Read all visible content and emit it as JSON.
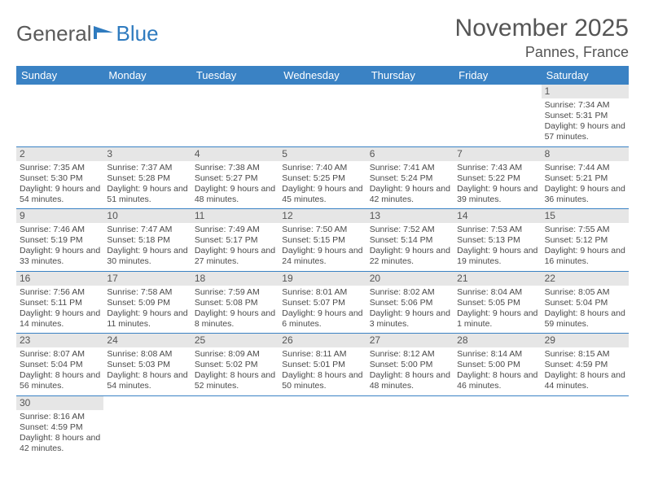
{
  "logo": {
    "text1": "General",
    "text2": "Blue"
  },
  "header": {
    "month": "November 2025",
    "location": "Pannes, France"
  },
  "colors": {
    "header_bg": "#3a82c4",
    "header_text": "#ffffff",
    "date_bg": "#e6e6e6",
    "body_text": "#4a4a4a",
    "row_border": "#3a82c4"
  },
  "fonts": {
    "title_size": 30,
    "location_size": 18,
    "dow_size": 13,
    "date_size": 12,
    "body_size": 10.5
  },
  "dow": [
    "Sunday",
    "Monday",
    "Tuesday",
    "Wednesday",
    "Thursday",
    "Friday",
    "Saturday"
  ],
  "weeks": [
    [
      null,
      null,
      null,
      null,
      null,
      null,
      {
        "d": "1",
        "sr": "Sunrise: 7:34 AM",
        "ss": "Sunset: 5:31 PM",
        "dl": "Daylight: 9 hours and 57 minutes."
      }
    ],
    [
      {
        "d": "2",
        "sr": "Sunrise: 7:35 AM",
        "ss": "Sunset: 5:30 PM",
        "dl": "Daylight: 9 hours and 54 minutes."
      },
      {
        "d": "3",
        "sr": "Sunrise: 7:37 AM",
        "ss": "Sunset: 5:28 PM",
        "dl": "Daylight: 9 hours and 51 minutes."
      },
      {
        "d": "4",
        "sr": "Sunrise: 7:38 AM",
        "ss": "Sunset: 5:27 PM",
        "dl": "Daylight: 9 hours and 48 minutes."
      },
      {
        "d": "5",
        "sr": "Sunrise: 7:40 AM",
        "ss": "Sunset: 5:25 PM",
        "dl": "Daylight: 9 hours and 45 minutes."
      },
      {
        "d": "6",
        "sr": "Sunrise: 7:41 AM",
        "ss": "Sunset: 5:24 PM",
        "dl": "Daylight: 9 hours and 42 minutes."
      },
      {
        "d": "7",
        "sr": "Sunrise: 7:43 AM",
        "ss": "Sunset: 5:22 PM",
        "dl": "Daylight: 9 hours and 39 minutes."
      },
      {
        "d": "8",
        "sr": "Sunrise: 7:44 AM",
        "ss": "Sunset: 5:21 PM",
        "dl": "Daylight: 9 hours and 36 minutes."
      }
    ],
    [
      {
        "d": "9",
        "sr": "Sunrise: 7:46 AM",
        "ss": "Sunset: 5:19 PM",
        "dl": "Daylight: 9 hours and 33 minutes."
      },
      {
        "d": "10",
        "sr": "Sunrise: 7:47 AM",
        "ss": "Sunset: 5:18 PM",
        "dl": "Daylight: 9 hours and 30 minutes."
      },
      {
        "d": "11",
        "sr": "Sunrise: 7:49 AM",
        "ss": "Sunset: 5:17 PM",
        "dl": "Daylight: 9 hours and 27 minutes."
      },
      {
        "d": "12",
        "sr": "Sunrise: 7:50 AM",
        "ss": "Sunset: 5:15 PM",
        "dl": "Daylight: 9 hours and 24 minutes."
      },
      {
        "d": "13",
        "sr": "Sunrise: 7:52 AM",
        "ss": "Sunset: 5:14 PM",
        "dl": "Daylight: 9 hours and 22 minutes."
      },
      {
        "d": "14",
        "sr": "Sunrise: 7:53 AM",
        "ss": "Sunset: 5:13 PM",
        "dl": "Daylight: 9 hours and 19 minutes."
      },
      {
        "d": "15",
        "sr": "Sunrise: 7:55 AM",
        "ss": "Sunset: 5:12 PM",
        "dl": "Daylight: 9 hours and 16 minutes."
      }
    ],
    [
      {
        "d": "16",
        "sr": "Sunrise: 7:56 AM",
        "ss": "Sunset: 5:11 PM",
        "dl": "Daylight: 9 hours and 14 minutes."
      },
      {
        "d": "17",
        "sr": "Sunrise: 7:58 AM",
        "ss": "Sunset: 5:09 PM",
        "dl": "Daylight: 9 hours and 11 minutes."
      },
      {
        "d": "18",
        "sr": "Sunrise: 7:59 AM",
        "ss": "Sunset: 5:08 PM",
        "dl": "Daylight: 9 hours and 8 minutes."
      },
      {
        "d": "19",
        "sr": "Sunrise: 8:01 AM",
        "ss": "Sunset: 5:07 PM",
        "dl": "Daylight: 9 hours and 6 minutes."
      },
      {
        "d": "20",
        "sr": "Sunrise: 8:02 AM",
        "ss": "Sunset: 5:06 PM",
        "dl": "Daylight: 9 hours and 3 minutes."
      },
      {
        "d": "21",
        "sr": "Sunrise: 8:04 AM",
        "ss": "Sunset: 5:05 PM",
        "dl": "Daylight: 9 hours and 1 minute."
      },
      {
        "d": "22",
        "sr": "Sunrise: 8:05 AM",
        "ss": "Sunset: 5:04 PM",
        "dl": "Daylight: 8 hours and 59 minutes."
      }
    ],
    [
      {
        "d": "23",
        "sr": "Sunrise: 8:07 AM",
        "ss": "Sunset: 5:04 PM",
        "dl": "Daylight: 8 hours and 56 minutes."
      },
      {
        "d": "24",
        "sr": "Sunrise: 8:08 AM",
        "ss": "Sunset: 5:03 PM",
        "dl": "Daylight: 8 hours and 54 minutes."
      },
      {
        "d": "25",
        "sr": "Sunrise: 8:09 AM",
        "ss": "Sunset: 5:02 PM",
        "dl": "Daylight: 8 hours and 52 minutes."
      },
      {
        "d": "26",
        "sr": "Sunrise: 8:11 AM",
        "ss": "Sunset: 5:01 PM",
        "dl": "Daylight: 8 hours and 50 minutes."
      },
      {
        "d": "27",
        "sr": "Sunrise: 8:12 AM",
        "ss": "Sunset: 5:00 PM",
        "dl": "Daylight: 8 hours and 48 minutes."
      },
      {
        "d": "28",
        "sr": "Sunrise: 8:14 AM",
        "ss": "Sunset: 5:00 PM",
        "dl": "Daylight: 8 hours and 46 minutes."
      },
      {
        "d": "29",
        "sr": "Sunrise: 8:15 AM",
        "ss": "Sunset: 4:59 PM",
        "dl": "Daylight: 8 hours and 44 minutes."
      }
    ],
    [
      {
        "d": "30",
        "sr": "Sunrise: 8:16 AM",
        "ss": "Sunset: 4:59 PM",
        "dl": "Daylight: 8 hours and 42 minutes."
      },
      null,
      null,
      null,
      null,
      null,
      null
    ]
  ]
}
